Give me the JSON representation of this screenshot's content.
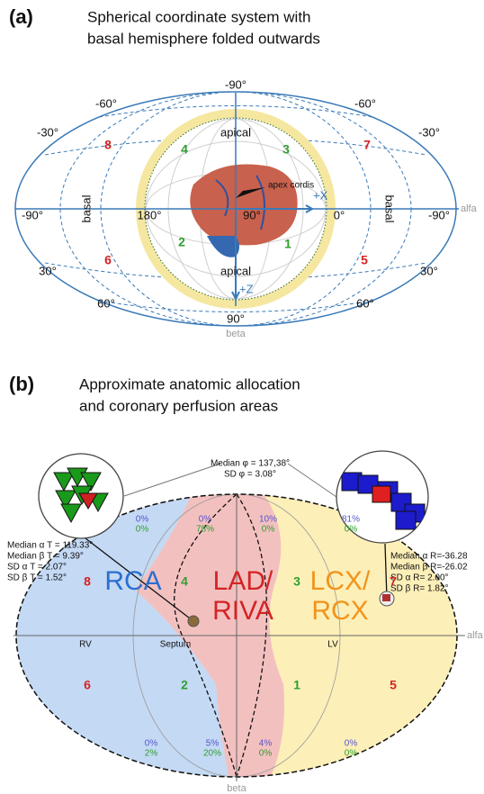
{
  "panel_a": {
    "label": "(a)",
    "title_lines": [
      "Spherical coordinate system with",
      "basal hemisphere folded outwards"
    ],
    "top": "-90°",
    "bottom": "90°",
    "left_outer": "-90°",
    "right_outer": "-90°",
    "minus60": [
      "-60°",
      "-60°"
    ],
    "minus30": [
      "-30°",
      "-30°"
    ],
    "plus30": [
      "30°",
      "30°"
    ],
    "plus60": [
      "60°",
      "60°"
    ],
    "center_ticks": [
      "180°",
      "90°",
      "0°"
    ],
    "apical": [
      "apical",
      "apical"
    ],
    "basal": [
      "basal",
      "basal"
    ],
    "x_axis": "alfa",
    "y_axis": "beta",
    "apex": "apex cordis",
    "axes_arrows": [
      "+X",
      "+Z"
    ],
    "segments": [
      "1",
      "2",
      "3",
      "4",
      "5",
      "6",
      "7",
      "8"
    ]
  },
  "panel_b": {
    "label": "(b)",
    "title_lines": [
      "Approximate anatomic allocation",
      "and  coronary perfusion areas"
    ],
    "phi": [
      "Median φ = 137,38°",
      "SD φ = 3.08°"
    ],
    "left_stats": [
      "Median α T = 119.33°",
      "Median β T = 9.39°",
      "SD α T = 2.07°",
      "SD β T = 1.52°"
    ],
    "right_stats": [
      "Median α R=-36.28",
      "Median β R=-26.02",
      "SD α R= 2.00°",
      "SD β R= 1.82°"
    ],
    "regions": [
      "RCA",
      "LAD/",
      "RIVA",
      "LCX/",
      "RCX"
    ],
    "sides": [
      "RV",
      "Septum",
      "LV"
    ],
    "x_axis": "alfa",
    "y_axis": "beta",
    "segments": [
      "1",
      "2",
      "3",
      "4",
      "5",
      "6",
      "7",
      "8"
    ],
    "percentages": [
      {
        "blue": "0%",
        "green": "0%"
      },
      {
        "blue": "0%",
        "green": "78%"
      },
      {
        "blue": "10%",
        "green": "0%"
      },
      {
        "blue": "81%",
        "green": "0%"
      },
      {
        "blue": "0%",
        "green": "2%"
      },
      {
        "blue": "5%",
        "green": "20%"
      },
      {
        "blue": "4%",
        "green": "0%"
      },
      {
        "blue": "0%",
        "green": "0%"
      }
    ]
  }
}
